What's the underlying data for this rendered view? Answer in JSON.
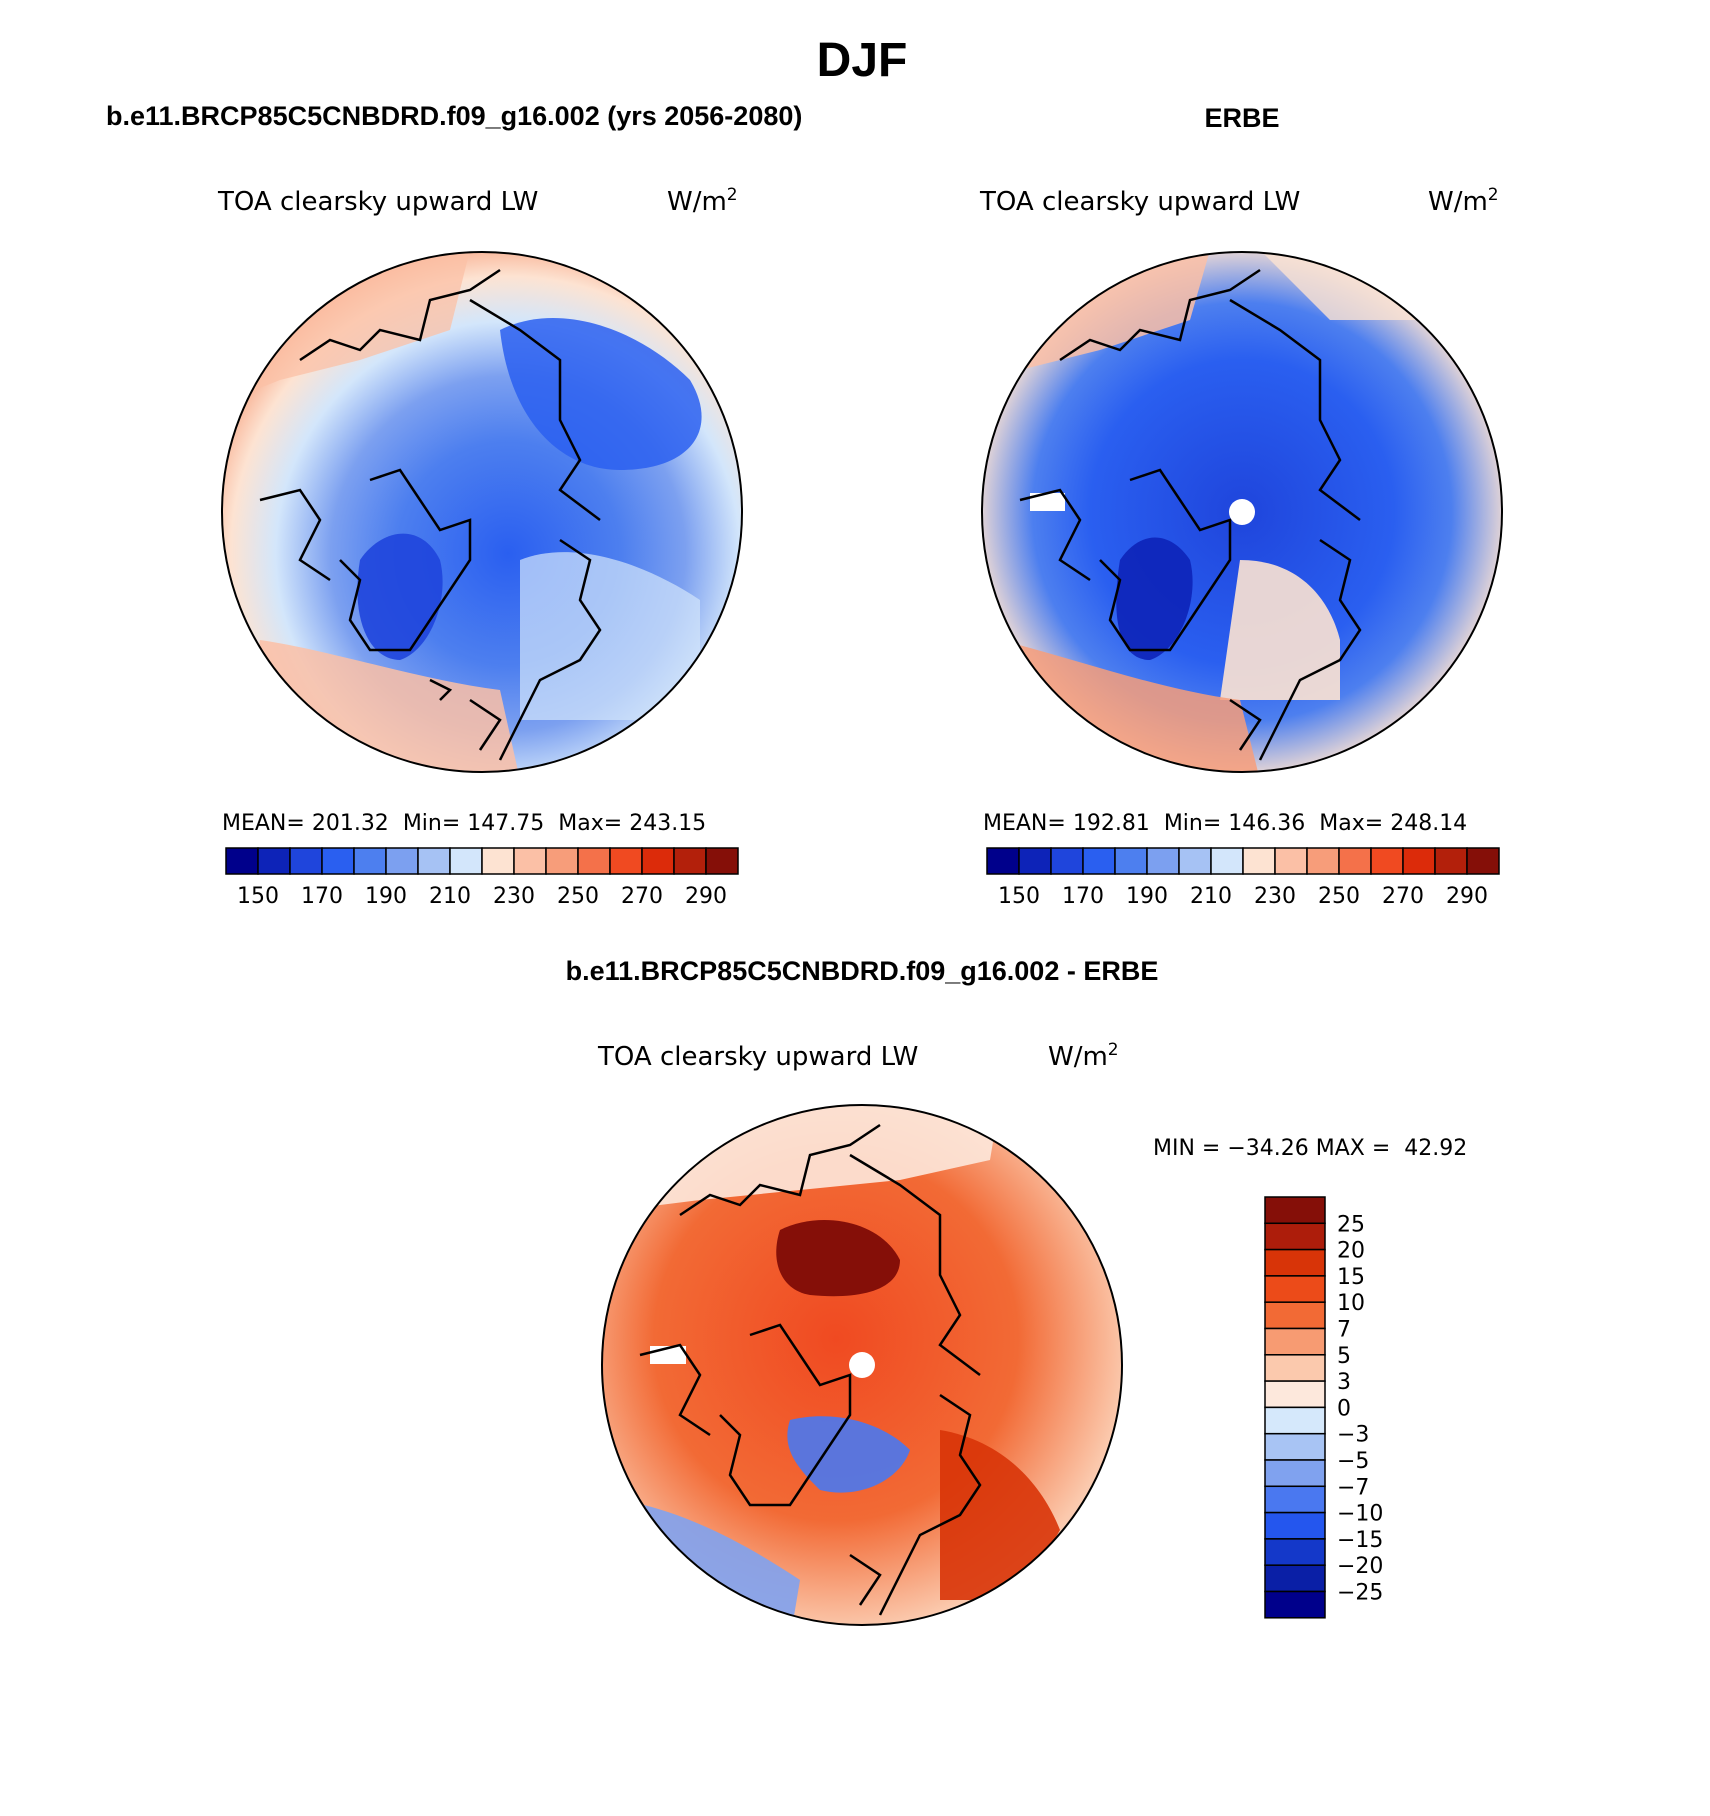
{
  "figure": {
    "season": "DJF",
    "model_title": "b.e11.BRCP85C5CNBDRD.f09_g16.002 (yrs 2056-2080)",
    "obs_title": "ERBE",
    "diff_title": "b.e11.BRCP85C5CNBDRD.f09_g16.002 - ERBE"
  },
  "panels": [
    {
      "id": "model",
      "variable": "TOA clearsky upward LW",
      "units": "W/m",
      "units_exp": "2",
      "stats": {
        "mean_label": "MEAN=",
        "mean": "201.32",
        "min_label": "Min=",
        "min": "147.75",
        "max_label": "Max=",
        "max": "243.15"
      }
    },
    {
      "id": "obs",
      "variable": "TOA clearsky upward LW",
      "units": "W/m",
      "units_exp": "2",
      "stats": {
        "mean_label": "MEAN=",
        "mean": "192.81",
        "min_label": "Min=",
        "min": "146.36",
        "max_label": "Max=",
        "max": "248.14"
      }
    },
    {
      "id": "diff",
      "variable": "TOA clearsky upward LW",
      "units": "W/m",
      "units_exp": "2",
      "stats_line": "MIN = −34.26 MAX =  42.92"
    }
  ],
  "colorbars": {
    "absolute": {
      "tick_labels": [
        "150",
        "170",
        "190",
        "210",
        "230",
        "250",
        "270",
        "290"
      ],
      "colors": [
        "#00008b",
        "#0d23b8",
        "#1f45dc",
        "#2a5ff0",
        "#4d7fef",
        "#7ca0f0",
        "#a6c2f4",
        "#d3e6fb",
        "#fde3d2",
        "#fbc0a6",
        "#f79d7a",
        "#f4714a",
        "#f04a21",
        "#dc2b0a",
        "#b3200b",
        "#850f08"
      ]
    },
    "difference": {
      "tick_labels": [
        "25",
        "20",
        "15",
        "10",
        "7",
        "5",
        "3",
        "0",
        "−3",
        "−5",
        "−7",
        "−10",
        "−15",
        "−20",
        "−25"
      ],
      "colors_top_to_bottom": [
        "#850f08",
        "#ad1d0b",
        "#d83408",
        "#ec4b19",
        "#f26a35",
        "#f79b72",
        "#fbc9ad",
        "#fde8dc",
        "#d5e8fb",
        "#a8c4f4",
        "#80a2ef",
        "#4a78f0",
        "#2456ee",
        "#1438c9",
        "#0a1fa6",
        "#00008b"
      ]
    }
  },
  "chart_data": [
    {
      "type": "heatmap",
      "title": "TOA clearsky upward LW",
      "subtitle": "b.e11.BRCP85C5CNBDRD.f09_g16.002 (yrs 2056-2080)",
      "units": "W/m2",
      "projection": "north polar stereographic",
      "mean": 201.32,
      "min": 147.75,
      "max": 243.15,
      "levels": [
        150,
        160,
        170,
        180,
        190,
        200,
        210,
        220,
        230,
        240,
        250,
        260,
        270,
        280,
        290
      ]
    },
    {
      "type": "heatmap",
      "title": "TOA clearsky upward LW",
      "subtitle": "ERBE",
      "units": "W/m2",
      "projection": "north polar stereographic",
      "mean": 192.81,
      "min": 146.36,
      "max": 248.14,
      "levels": [
        150,
        160,
        170,
        180,
        190,
        200,
        210,
        220,
        230,
        240,
        250,
        260,
        270,
        280,
        290
      ]
    },
    {
      "type": "heatmap",
      "title": "TOA clearsky upward LW",
      "subtitle": "b.e11.BRCP85C5CNBDRD.f09_g16.002 - ERBE",
      "units": "W/m2",
      "projection": "north polar stereographic",
      "min": -34.26,
      "max": 42.92,
      "levels": [
        -25,
        -20,
        -15,
        -10,
        -7,
        -5,
        -3,
        0,
        3,
        5,
        7,
        10,
        15,
        20,
        25
      ]
    }
  ]
}
